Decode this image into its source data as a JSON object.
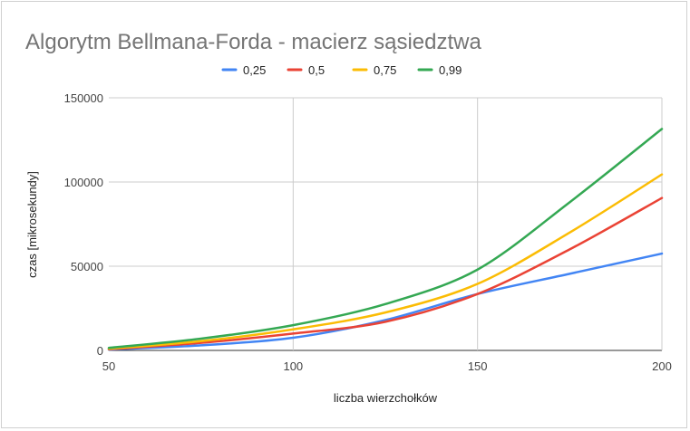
{
  "chart_data": {
    "type": "line",
    "title": "Algorytm Bellmana-Forda - macierz sąsiedztwa",
    "xlabel": "liczba wierzchołków",
    "ylabel": "czas [mikrosekundy]",
    "xlim": [
      50,
      200
    ],
    "ylim": [
      0,
      150000
    ],
    "x_ticks": [
      50,
      100,
      150,
      200
    ],
    "y_ticks": [
      0,
      50000,
      100000,
      150000
    ],
    "x_tick_labels": [
      "50",
      "100",
      "150",
      "200"
    ],
    "y_tick_labels": [
      "0",
      "50000",
      "100000",
      "150000"
    ],
    "grid": true,
    "legend_position": "top",
    "x": [
      50,
      75,
      100,
      125,
      150,
      175,
      200
    ],
    "series": [
      {
        "name": "0,25",
        "color": "#4285f4",
        "values": [
          500,
          3000,
          7500,
          18000,
          33500,
          45500,
          57500
        ]
      },
      {
        "name": "0,5",
        "color": "#ea4335",
        "values": [
          700,
          4500,
          10000,
          17000,
          33500,
          60000,
          90500
        ]
      },
      {
        "name": "0,75",
        "color": "#fbbc04",
        "values": [
          1000,
          5500,
          12500,
          22500,
          39500,
          70000,
          104500
        ]
      },
      {
        "name": "0,99",
        "color": "#34a853",
        "values": [
          1500,
          7000,
          15000,
          27500,
          48000,
          88000,
          131500
        ]
      }
    ]
  }
}
